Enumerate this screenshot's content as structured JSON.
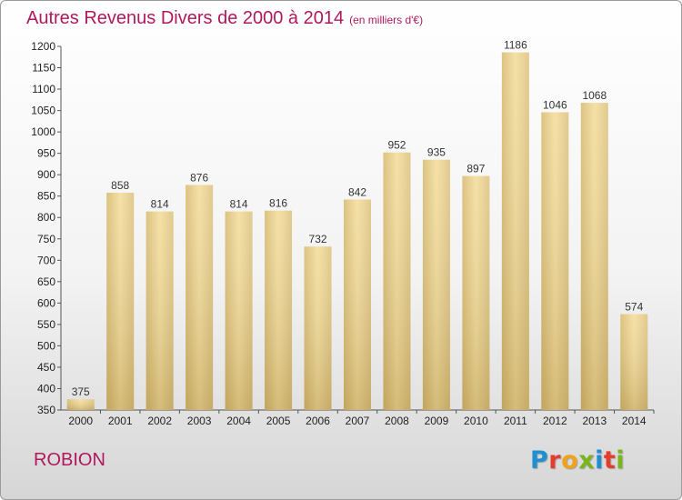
{
  "chart_data": {
    "type": "bar",
    "title": "Autres Revenus Divers de 2000 à 2014",
    "unit_label": "(en milliers d'€)",
    "categories": [
      "2000",
      "2001",
      "2002",
      "2003",
      "2004",
      "2005",
      "2006",
      "2007",
      "2008",
      "2009",
      "2010",
      "2011",
      "2012",
      "2013",
      "2014"
    ],
    "values": [
      375,
      858,
      814,
      876,
      814,
      816,
      732,
      842,
      952,
      935,
      897,
      1186,
      1046,
      1068,
      574
    ],
    "ylim": [
      350,
      1200
    ],
    "yticks": [
      350,
      400,
      450,
      500,
      550,
      600,
      650,
      700,
      750,
      800,
      850,
      900,
      950,
      1000,
      1050,
      1100,
      1150,
      1200
    ],
    "grid": false,
    "bar_color": "#e8cf87",
    "title_color": "#b0185f"
  },
  "footer": {
    "place": "ROBION",
    "logo": "Proxiti",
    "logo_colors": [
      "#1e8fd0",
      "#e33d2e",
      "#f0a21b",
      "#7ab51d",
      "#1e8fd0",
      "#e33d2e",
      "#7ab51d"
    ]
  }
}
